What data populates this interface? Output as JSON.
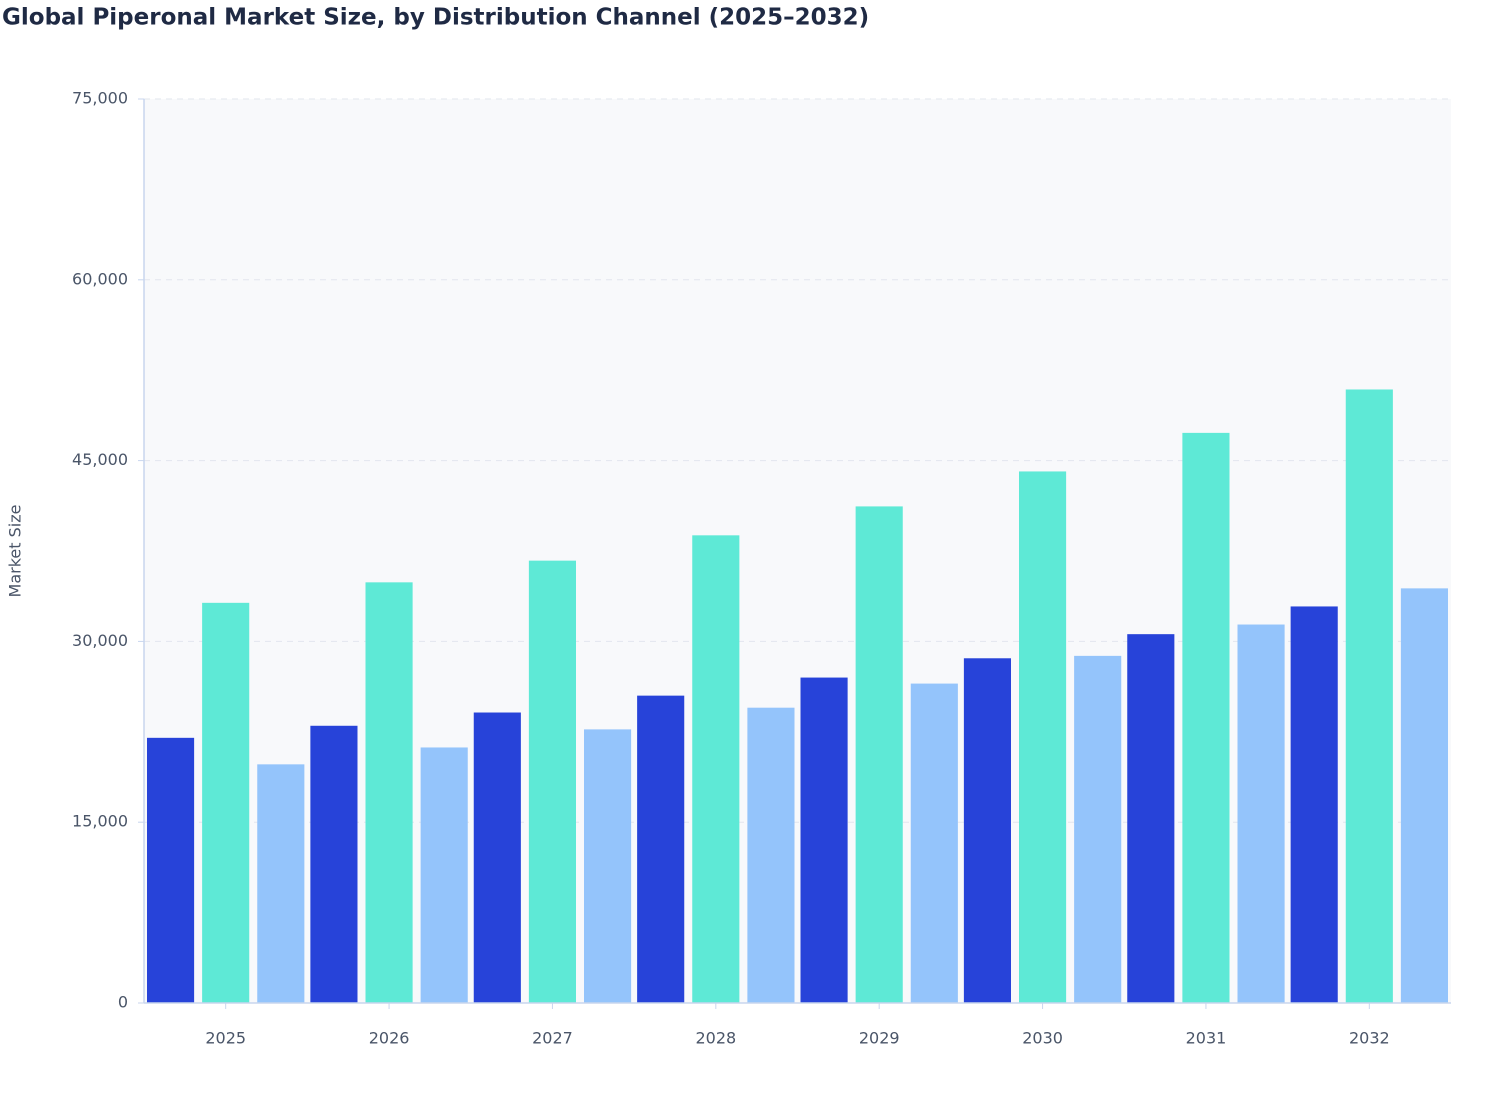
{
  "chart_data": {
    "type": "bar",
    "title": "Global Piperonal Market Size, by Distribution Channel (2025–2032)",
    "y_label": "Market Size",
    "categories": [
      "2025",
      "2026",
      "2027",
      "2028",
      "2029",
      "2030",
      "2031",
      "2032"
    ],
    "series": [
      {
        "color": "#2743d9",
        "values": [
          22000,
          23000,
          24100,
          25500,
          27000,
          28600,
          30600,
          32900
        ]
      },
      {
        "color": "#5ee9d6",
        "values": [
          33200,
          34900,
          36700,
          38800,
          41200,
          44100,
          47300,
          50900
        ]
      },
      {
        "color": "#94c4fb",
        "values": [
          19800,
          21200,
          22700,
          24500,
          26500,
          28800,
          31400,
          34400
        ]
      }
    ],
    "ylim": [
      0,
      75000
    ],
    "yticks": [
      0,
      {
        "value": 15000,
        "label": "15,000"
      },
      {
        "value": 30000,
        "label": "30,000"
      },
      {
        "value": 45000,
        "label": "45,000"
      },
      {
        "value": 60000,
        "label": "60,000"
      },
      {
        "value": 75000,
        "label": "75,000"
      }
    ],
    "grid": true
  }
}
